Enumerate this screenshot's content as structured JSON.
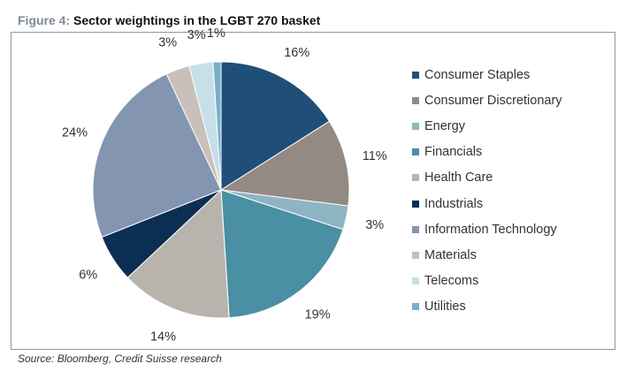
{
  "figure": {
    "label": "Figure 4:",
    "title": "Sector weightings in the LGBT 270 basket"
  },
  "source": "Source: Bloomberg, Credit Suisse research",
  "chart_data": {
    "type": "pie",
    "categories": [
      "Consumer Staples",
      "Consumer Discretionary",
      "Energy",
      "Financials",
      "Health Care",
      "Industrials",
      "Information Technology",
      "Materials",
      "Telecoms",
      "Utilities"
    ],
    "values": [
      16,
      11,
      3,
      19,
      14,
      6,
      24,
      3,
      3,
      1
    ],
    "labels": [
      "16%",
      "11%",
      "3%",
      "19%",
      "14%",
      "6%",
      "24%",
      "3%",
      "3%",
      "1%"
    ],
    "colors": [
      "#1f4e79",
      "#948a84",
      "#8fb4c2",
      "#4a8fa3",
      "#b9b3ae",
      "#0b2f52",
      "#8395b0",
      "#c8c0ba",
      "#c6dfe8",
      "#7aaeca"
    ],
    "legend_position": "right"
  }
}
